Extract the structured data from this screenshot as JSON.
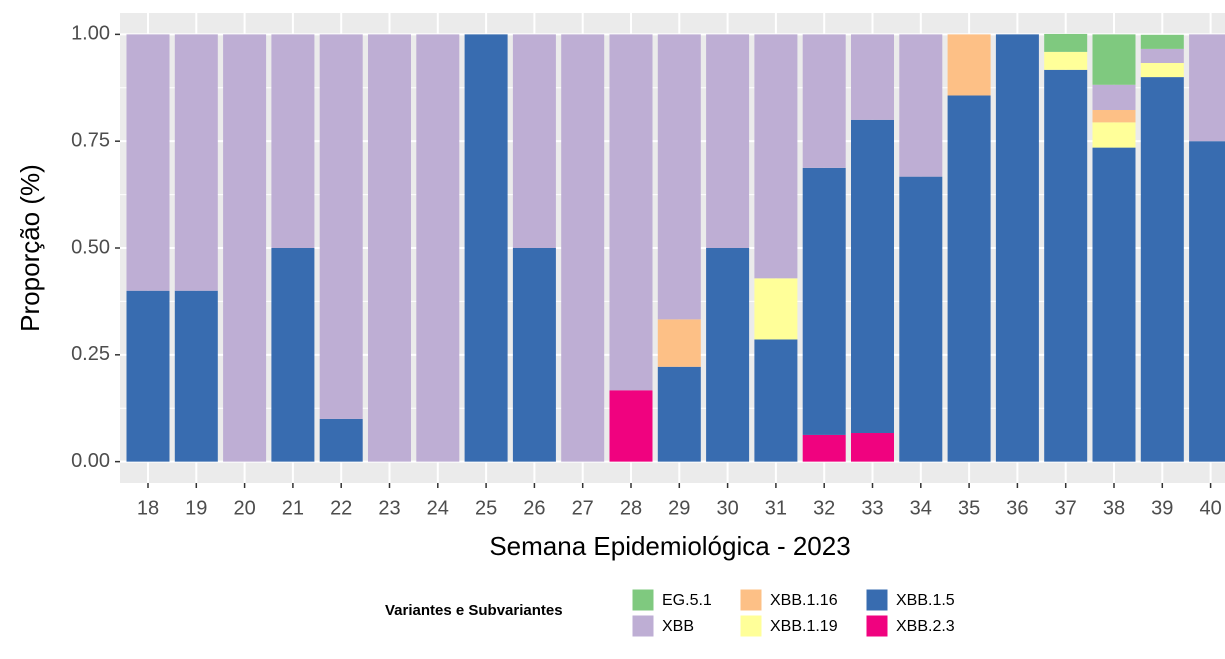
{
  "chart_data": {
    "type": "stacked_bar",
    "x_label": "Semana Epidemiológica - 2023",
    "y_label": "Proporção (%)",
    "legend_title": "Variantes e Subvariantes",
    "categories": [
      "18",
      "19",
      "20",
      "21",
      "22",
      "23",
      "24",
      "25",
      "26",
      "27",
      "28",
      "29",
      "30",
      "31",
      "32",
      "33",
      "34",
      "35",
      "36",
      "37",
      "38",
      "39",
      "40"
    ],
    "series": [
      {
        "name": "EG.5.1",
        "color": "#7fc97f",
        "values": [
          0,
          0,
          0,
          0,
          0,
          0,
          0,
          0,
          0,
          0,
          0,
          0,
          0,
          0,
          0,
          0,
          0,
          0,
          0,
          0.042,
          0.118,
          0.033,
          0
        ]
      },
      {
        "name": "XBB",
        "color": "#beaed4",
        "values": [
          0.6,
          0.6,
          1,
          0.5,
          0.9,
          1,
          1,
          0,
          0.5,
          1,
          0.833,
          0.667,
          0.5,
          0.571,
          0.3125,
          0.2,
          0.333,
          0,
          0,
          0,
          0.059,
          0.033,
          0.25
        ]
      },
      {
        "name": "XBB.1.16",
        "color": "#fdc086",
        "values": [
          0,
          0,
          0,
          0,
          0,
          0,
          0,
          0,
          0,
          0,
          0,
          0.111,
          0,
          0,
          0,
          0,
          0,
          0.143,
          0,
          0,
          0.029,
          0,
          0
        ]
      },
      {
        "name": "XBB.1.19",
        "color": "#ffff99",
        "values": [
          0,
          0,
          0,
          0,
          0,
          0,
          0,
          0,
          0,
          0,
          0,
          0,
          0,
          0.143,
          0,
          0,
          0,
          0,
          0,
          0.042,
          0.059,
          0.033,
          0
        ]
      },
      {
        "name": "XBB.1.5",
        "color": "#386cb0",
        "values": [
          0.4,
          0.4,
          0,
          0.5,
          0.1,
          0,
          0,
          1,
          0.5,
          0,
          0,
          0.222,
          0.5,
          0.286,
          0.625,
          0.733,
          0.667,
          0.857,
          1,
          0.917,
          0.735,
          0.9,
          0.75
        ]
      },
      {
        "name": "XBB.2.3",
        "color": "#f0027f",
        "values": [
          0,
          0,
          0,
          0,
          0,
          0,
          0,
          0,
          0,
          0,
          0.167,
          0,
          0,
          0,
          0.0625,
          0.067,
          0,
          0,
          0,
          0,
          0,
          0,
          0
        ]
      }
    ],
    "ylim": [
      -0.05,
      1.05
    ],
    "yticks": [
      {
        "value": 0,
        "label": "0.00"
      },
      {
        "value": 0.25,
        "label": "0.25"
      },
      {
        "value": 0.5,
        "label": "0.50"
      },
      {
        "value": 0.75,
        "label": "0.75"
      },
      {
        "value": 1,
        "label": "1.00"
      }
    ],
    "grid": true
  }
}
